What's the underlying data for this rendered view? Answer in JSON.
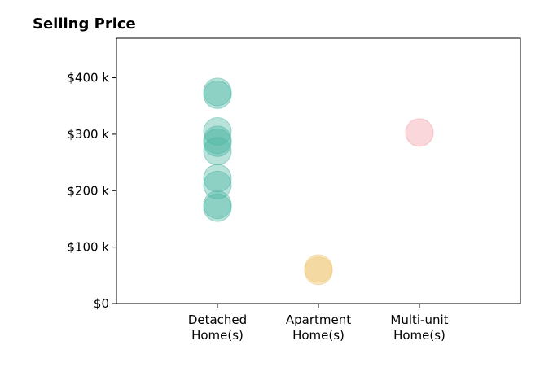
{
  "chart_data": {
    "type": "scatter",
    "title": "Selling Price",
    "xlabel": "",
    "ylabel": "",
    "categories": [
      [
        "Detached",
        "Home(s)"
      ],
      [
        "Apartment",
        "Home(s)"
      ],
      [
        "Multi-unit",
        "Home(s)"
      ]
    ],
    "yticks": [
      0,
      100,
      200,
      300,
      400
    ],
    "ytick_labels": [
      "$0",
      "$100 k",
      "$200 k",
      "$300 k",
      "$400 k"
    ],
    "ylim": [
      0,
      470
    ],
    "xlim": [
      -1,
      3
    ],
    "grid": false,
    "series": [
      {
        "category": 0,
        "color": "#4db6a3",
        "values": [
          375,
          370,
          305,
          290,
          285,
          270,
          222,
          210,
          175,
          170
        ]
      },
      {
        "category": 1,
        "color": "#eec56e",
        "values": [
          62,
          58
        ]
      },
      {
        "category": 2,
        "color": "#f19aa4",
        "values": [
          303
        ]
      }
    ]
  }
}
